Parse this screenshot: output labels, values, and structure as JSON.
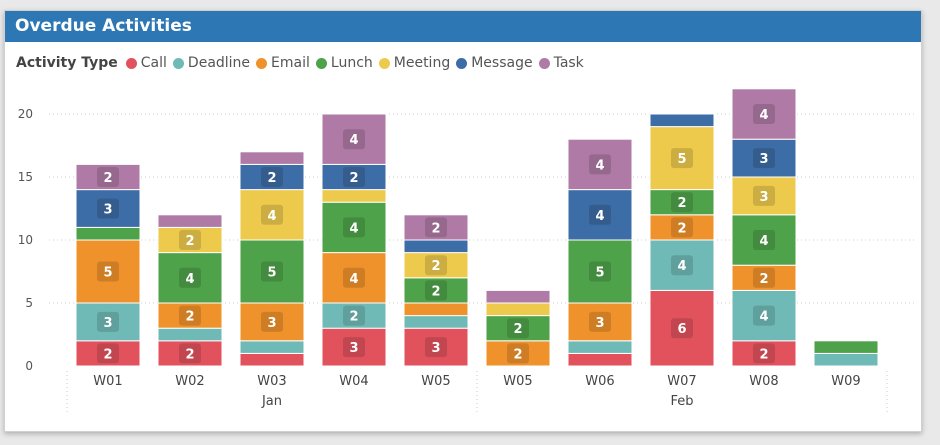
{
  "header": {
    "title": "Overdue Activities"
  },
  "legend": {
    "title": "Activity Type",
    "items": [
      {
        "label": "Call",
        "color": "#e2525c"
      },
      {
        "label": "Deadline",
        "color": "#6fbab6"
      },
      {
        "label": "Email",
        "color": "#f0922b"
      },
      {
        "label": "Lunch",
        "color": "#4ea249"
      },
      {
        "label": "Meeting",
        "color": "#eeca4c"
      },
      {
        "label": "Message",
        "color": "#3d6da6"
      },
      {
        "label": "Task",
        "color": "#b07aa6"
      }
    ]
  },
  "chart_data": {
    "type": "bar",
    "stacked": true,
    "title": "Overdue Activities",
    "legend_title": "Activity Type",
    "legend_position": "top-left",
    "ylim": [
      0,
      22
    ],
    "yticks": [
      0,
      5,
      10,
      15,
      20
    ],
    "grid": true,
    "categories": [
      "W01",
      "W02",
      "W03",
      "W04",
      "W05",
      "W05",
      "W06",
      "W07",
      "W08",
      "W09"
    ],
    "groups": [
      {
        "label": "Jan",
        "categories": [
          "W01",
          "W02",
          "W03",
          "W04",
          "W05"
        ]
      },
      {
        "label": "Feb",
        "categories": [
          "W05",
          "W06",
          "W07",
          "W08",
          "W09"
        ]
      }
    ],
    "series": [
      {
        "name": "Call",
        "color": "#e2525c",
        "values": [
          2,
          2,
          1,
          3,
          3,
          0,
          1,
          6,
          2,
          0
        ]
      },
      {
        "name": "Deadline",
        "color": "#6fbab6",
        "values": [
          3,
          1,
          1,
          2,
          1,
          0,
          1,
          4,
          4,
          1
        ]
      },
      {
        "name": "Email",
        "color": "#f0922b",
        "values": [
          5,
          2,
          3,
          4,
          1,
          2,
          3,
          2,
          2,
          0
        ]
      },
      {
        "name": "Lunch",
        "color": "#4ea249",
        "values": [
          1,
          4,
          5,
          4,
          2,
          2,
          5,
          2,
          4,
          1
        ]
      },
      {
        "name": "Meeting",
        "color": "#eeca4c",
        "values": [
          0,
          2,
          4,
          1,
          2,
          1,
          0,
          5,
          3,
          0
        ]
      },
      {
        "name": "Message",
        "color": "#3d6da6",
        "values": [
          3,
          0,
          2,
          2,
          1,
          0,
          4,
          1,
          3,
          0
        ]
      },
      {
        "name": "Task",
        "color": "#b07aa6",
        "values": [
          2,
          1,
          1,
          4,
          2,
          1,
          4,
          0,
          4,
          0
        ]
      }
    ]
  }
}
